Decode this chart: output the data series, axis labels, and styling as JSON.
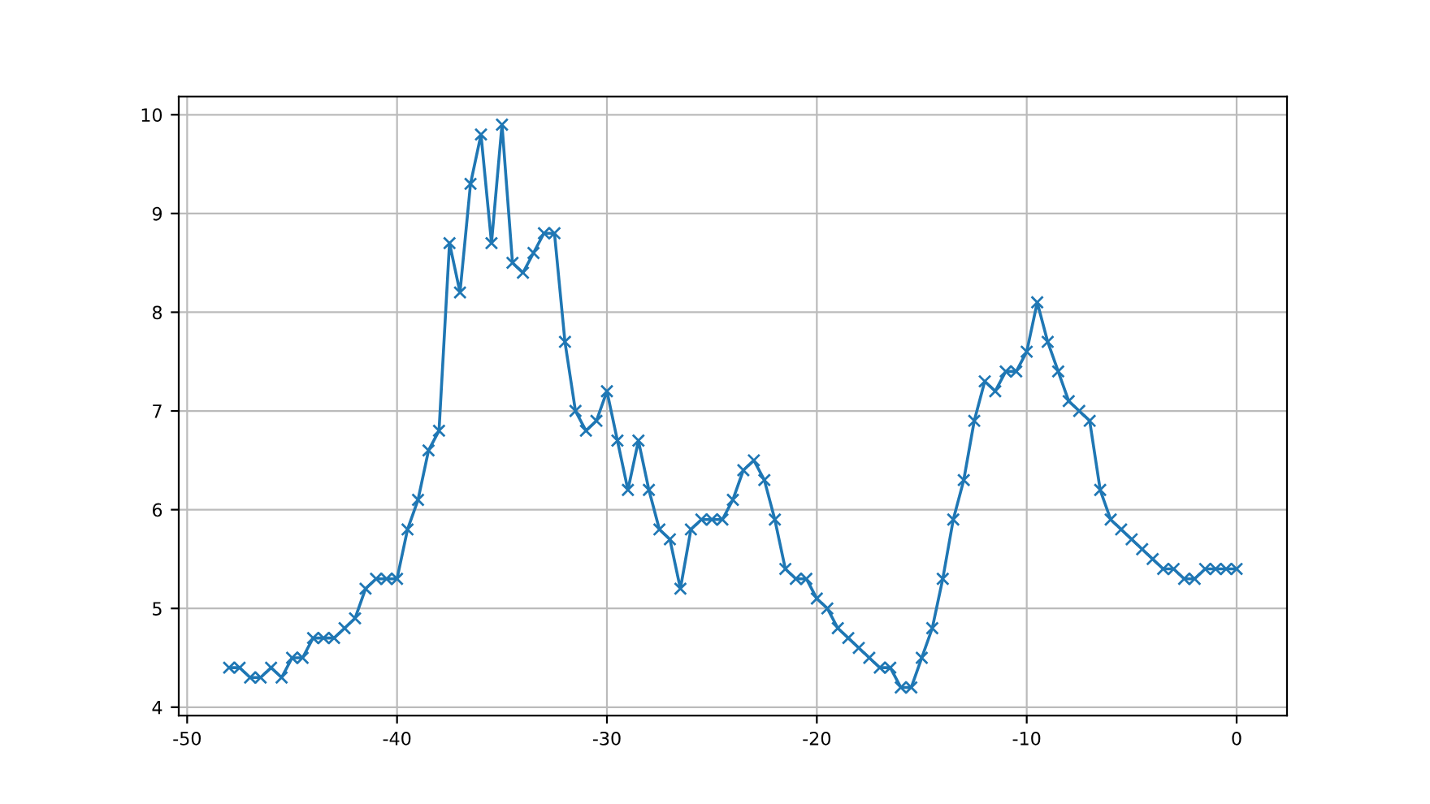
{
  "chart_data": {
    "type": "line",
    "x": [
      -48,
      -47.5,
      -47,
      -46.5,
      -46,
      -45.5,
      -45,
      -44.5,
      -44,
      -43.5,
      -43,
      -42.5,
      -42,
      -41.5,
      -41,
      -40.5,
      -40,
      -39.5,
      -39,
      -38.5,
      -38,
      -37.5,
      -37,
      -36.5,
      -36,
      -35.5,
      -35,
      -34.5,
      -34,
      -33.5,
      -33,
      -32.5,
      -32,
      -31.5,
      -31,
      -30.5,
      -30,
      -29.5,
      -29,
      -28.5,
      -28,
      -27.5,
      -27,
      -26.5,
      -26,
      -25.5,
      -25,
      -24.5,
      -24,
      -23.5,
      -23,
      -22.5,
      -22,
      -21.5,
      -21,
      -20.5,
      -20,
      -19.5,
      -19,
      -18.5,
      -18,
      -17.5,
      -17,
      -16.5,
      -16,
      -15.5,
      -15,
      -14.5,
      -14,
      -13.5,
      -13,
      -12.5,
      -12,
      -11.5,
      -11,
      -10.5,
      -10,
      -9.5,
      -9,
      -8.5,
      -8,
      -7.5,
      -7,
      -6.5,
      -6,
      -5.5,
      -5,
      -4.5,
      -4,
      -3.5,
      -3,
      -2.5,
      -2,
      -1.5,
      -1,
      -0.5,
      0
    ],
    "series": [
      {
        "color": "#1f77b4",
        "values": [
          4.4,
          4.4,
          4.3,
          4.3,
          4.4,
          4.3,
          4.5,
          4.5,
          4.7,
          4.7,
          4.7,
          4.8,
          4.9,
          5.2,
          5.3,
          5.3,
          5.3,
          5.8,
          6.1,
          6.6,
          6.8,
          8.7,
          8.2,
          9.3,
          9.8,
          8.7,
          9.9,
          8.5,
          8.4,
          8.6,
          8.8,
          8.8,
          7.7,
          7.0,
          6.8,
          6.9,
          7.2,
          6.7,
          6.2,
          6.7,
          6.2,
          5.8,
          5.7,
          5.2,
          5.8,
          5.9,
          5.9,
          5.9,
          6.1,
          6.4,
          6.5,
          6.3,
          5.9,
          5.4,
          5.3,
          5.3,
          5.1,
          5.0,
          4.8,
          4.7,
          4.6,
          4.5,
          4.4,
          4.4,
          4.2,
          4.2,
          4.5,
          4.8,
          5.3,
          5.9,
          6.3,
          6.9,
          7.3,
          7.2,
          7.4,
          7.4,
          7.6,
          8.1,
          7.7,
          7.4,
          7.1,
          7.0,
          6.9,
          6.2,
          5.9,
          5.8,
          5.7,
          5.6,
          5.5,
          5.4,
          5.4,
          5.3,
          5.3,
          5.4,
          5.4,
          5.4,
          5.4
        ]
      }
    ],
    "xlim": [
      -50.4,
      2.4
    ],
    "ylim": [
      3.915,
      10.185
    ],
    "xticks": [
      -50,
      -40,
      -30,
      -20,
      -10,
      0
    ],
    "yticks": [
      4,
      5,
      6,
      7,
      8,
      9,
      10
    ],
    "grid": true,
    "marker": "cross",
    "line_style": "solid"
  }
}
